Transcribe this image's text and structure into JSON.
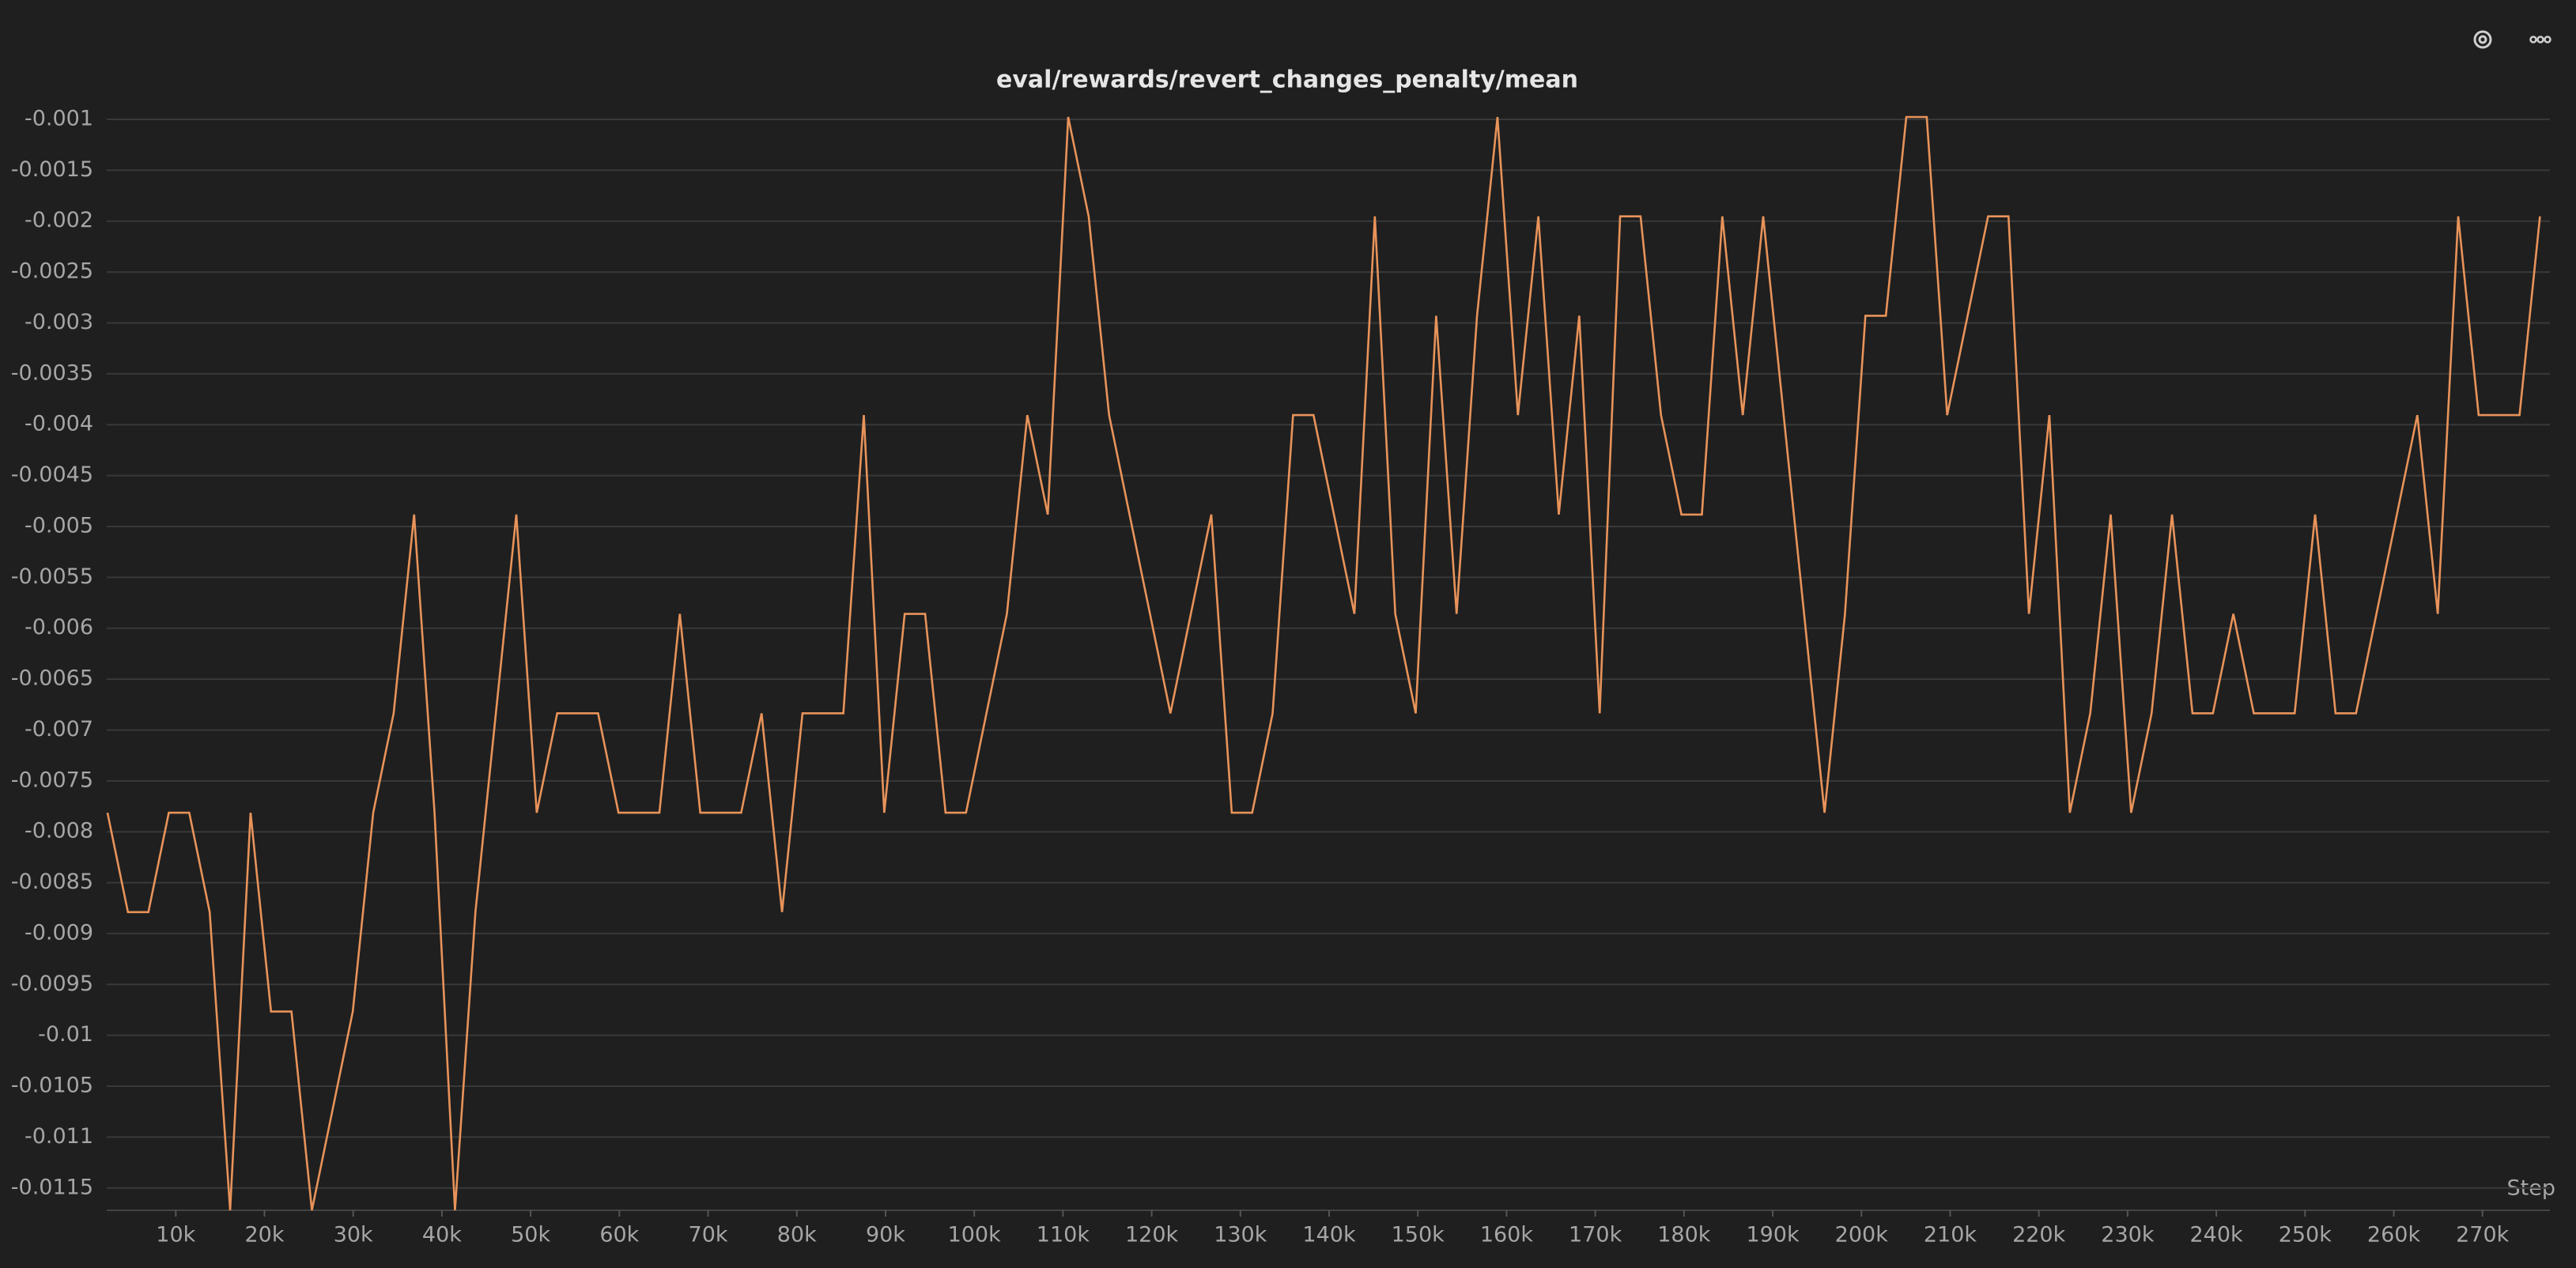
{
  "chart_data": {
    "type": "line",
    "title": "eval/rewards/revert_changes_penalty/mean",
    "x_label": "Step",
    "x": [
      2304,
      4608,
      6912,
      9216,
      11520,
      13824,
      16128,
      18432,
      20736,
      23040,
      25344,
      27648,
      29952,
      32256,
      34560,
      36864,
      39168,
      41472,
      43776,
      46080,
      48384,
      50688,
      52992,
      55296,
      57600,
      59904,
      62208,
      64512,
      66816,
      69120,
      71424,
      73728,
      76032,
      78336,
      80640,
      82944,
      85248,
      87552,
      89856,
      92160,
      94464,
      96768,
      99072,
      101376,
      103680,
      105984,
      108288,
      110592,
      112896,
      115200,
      117504,
      119808,
      122112,
      124416,
      126720,
      129024,
      131328,
      133632,
      135936,
      138240,
      140544,
      142848,
      145152,
      147456,
      149760,
      152064,
      154368,
      156672,
      158976,
      161280,
      163584,
      165888,
      168192,
      170496,
      172800,
      175104,
      177408,
      179712,
      182016,
      184320,
      186624,
      188928,
      191232,
      193536,
      195840,
      198144,
      200448,
      202752,
      205056,
      207360,
      209664,
      211968,
      214272,
      216576,
      218880,
      221184,
      223488,
      225792,
      228096,
      230400,
      232704,
      235008,
      237312,
      239616,
      241920,
      244224,
      246528,
      248832,
      251136,
      253440,
      255744,
      258048,
      260352,
      262656,
      264960,
      267264,
      269568,
      271872,
      274176,
      276480
    ],
    "series": [
      {
        "name": "eval/rewards/revert_changes_penalty/mean",
        "color": "#e8935a",
        "values": [
          -0.007813,
          -0.008789,
          -0.008789,
          -0.007813,
          -0.007813,
          -0.008789,
          -0.011719,
          -0.007813,
          -0.009766,
          -0.009766,
          -0.011719,
          -0.010742,
          -0.009766,
          -0.007813,
          -0.006836,
          -0.004883,
          -0.007813,
          -0.011719,
          -0.008789,
          -0.006836,
          -0.004883,
          -0.007813,
          -0.006836,
          -0.006836,
          -0.006836,
          -0.007813,
          -0.007813,
          -0.007813,
          -0.005859,
          -0.007813,
          -0.007813,
          -0.007813,
          -0.006836,
          -0.008789,
          -0.006836,
          -0.006836,
          -0.006836,
          -0.003906,
          -0.007813,
          -0.005859,
          -0.005859,
          -0.007813,
          -0.007813,
          -0.006836,
          -0.005859,
          -0.003906,
          -0.004883,
          -0.000977,
          -0.001953,
          -0.003906,
          -0.004883,
          -0.005859,
          -0.006836,
          -0.005859,
          -0.004883,
          -0.007813,
          -0.007813,
          -0.006836,
          -0.003906,
          -0.003906,
          -0.004883,
          -0.005859,
          -0.001953,
          -0.005859,
          -0.006836,
          -0.00293,
          -0.005859,
          -0.00293,
          -0.000977,
          -0.003906,
          -0.001953,
          -0.004883,
          -0.00293,
          -0.006836,
          -0.001953,
          -0.001953,
          -0.003906,
          -0.004883,
          -0.004883,
          -0.001953,
          -0.003906,
          -0.001953,
          -0.003906,
          -0.005859,
          -0.007813,
          -0.005859,
          -0.00293,
          -0.00293,
          -0.000977,
          -0.000977,
          -0.003906,
          -0.00293,
          -0.001953,
          -0.001953,
          -0.005859,
          -0.003906,
          -0.007813,
          -0.006836,
          -0.004883,
          -0.007813,
          -0.006836,
          -0.004883,
          -0.006836,
          -0.006836,
          -0.005859,
          -0.006836,
          -0.006836,
          -0.006836,
          -0.004883,
          -0.006836,
          -0.006836,
          -0.005859,
          -0.004883,
          -0.003906,
          -0.005859,
          -0.001953,
          -0.003906,
          -0.003906,
          -0.003906,
          -0.001953
        ]
      }
    ],
    "xlim": [
      2220,
      277600
    ],
    "ylim": [
      -0.011719,
      -0.000977
    ],
    "xticks": [
      {
        "value": 10000,
        "label": "10k"
      },
      {
        "value": 20000,
        "label": "20k"
      },
      {
        "value": 30000,
        "label": "30k"
      },
      {
        "value": 40000,
        "label": "40k"
      },
      {
        "value": 50000,
        "label": "50k"
      },
      {
        "value": 60000,
        "label": "60k"
      },
      {
        "value": 70000,
        "label": "70k"
      },
      {
        "value": 80000,
        "label": "80k"
      },
      {
        "value": 90000,
        "label": "90k"
      },
      {
        "value": 100000,
        "label": "100k"
      },
      {
        "value": 110000,
        "label": "110k"
      },
      {
        "value": 120000,
        "label": "120k"
      },
      {
        "value": 130000,
        "label": "130k"
      },
      {
        "value": 140000,
        "label": "140k"
      },
      {
        "value": 150000,
        "label": "150k"
      },
      {
        "value": 160000,
        "label": "160k"
      },
      {
        "value": 170000,
        "label": "170k"
      },
      {
        "value": 180000,
        "label": "180k"
      },
      {
        "value": 190000,
        "label": "190k"
      },
      {
        "value": 200000,
        "label": "200k"
      },
      {
        "value": 210000,
        "label": "210k"
      },
      {
        "value": 220000,
        "label": "220k"
      },
      {
        "value": 230000,
        "label": "230k"
      },
      {
        "value": 240000,
        "label": "240k"
      },
      {
        "value": 250000,
        "label": "250k"
      },
      {
        "value": 260000,
        "label": "260k"
      },
      {
        "value": 270000,
        "label": "270k"
      }
    ],
    "yticks": [
      -0.001,
      -0.0015,
      -0.002,
      -0.0025,
      -0.003,
      -0.0035,
      -0.004,
      -0.0045,
      -0.005,
      -0.0055,
      -0.006,
      -0.0065,
      -0.007,
      -0.0075,
      -0.008,
      -0.0085,
      -0.009,
      -0.0095,
      -0.01,
      -0.0105,
      -0.011,
      -0.0115
    ],
    "grid": true
  }
}
